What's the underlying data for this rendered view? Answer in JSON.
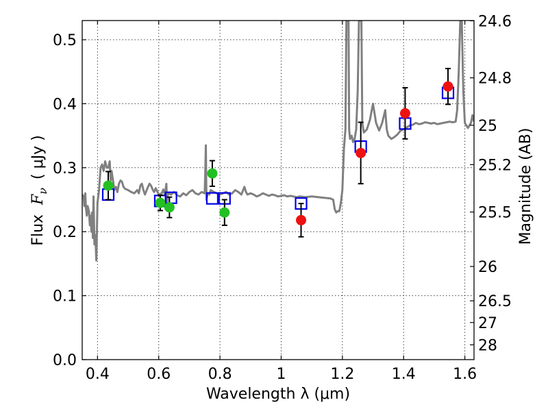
{
  "chart_data": {
    "type": "scatter",
    "title": "",
    "xlabel": "Wavelength  λ (μm)",
    "ylabel": "Flux  F_ν  ( μJy )",
    "ylabel_parts": {
      "prefix": "Flux",
      "symbol": "F",
      "subscript": "ν",
      "unit": "( μJy )"
    },
    "y2label": "Magnitude (AB)",
    "xlim": [
      0.35,
      1.63
    ],
    "ylim": [
      0.0,
      0.53
    ],
    "grid": true,
    "x_ticks": [
      {
        "value": 0.4,
        "label": "0.4"
      },
      {
        "value": 0.6,
        "label": "0.6"
      },
      {
        "value": 0.8,
        "label": "0.8"
      },
      {
        "value": 1.0,
        "label": "1"
      },
      {
        "value": 1.2,
        "label": "1.2"
      },
      {
        "value": 1.4,
        "label": "1.4"
      },
      {
        "value": 1.6,
        "label": "1.6"
      }
    ],
    "y_ticks": [
      {
        "value": 0.0,
        "label": "0.0"
      },
      {
        "value": 0.1,
        "label": "0.1"
      },
      {
        "value": 0.2,
        "label": "0.2"
      },
      {
        "value": 0.3,
        "label": "0.3"
      },
      {
        "value": 0.4,
        "label": "0.4"
      },
      {
        "value": 0.5,
        "label": "0.5"
      }
    ],
    "y2_ticks": [
      {
        "flux": 0.5296,
        "label": "24.6"
      },
      {
        "flux": 0.4405,
        "label": "24.8"
      },
      {
        "flux": 0.3664,
        "label": "25"
      },
      {
        "flux": 0.3048,
        "label": "25.2"
      },
      {
        "flux": 0.2307,
        "label": "25.5"
      },
      {
        "flux": 0.1456,
        "label": "26"
      },
      {
        "flux": 0.0919,
        "label": "26.5"
      },
      {
        "flux": 0.058,
        "label": "27"
      },
      {
        "flux": 0.0231,
        "label": "28"
      }
    ],
    "colors": {
      "sed": "#808080",
      "hst_points": "#22c022",
      "ir_points": "#ee1111",
      "model_boxes": "#0000e6",
      "errorbars": "#000000"
    },
    "series": [
      {
        "name": "model SED",
        "kind": "line",
        "color": "#808080",
        "points": [
          [
            0.35,
            0.258
          ],
          [
            0.355,
            0.255
          ],
          [
            0.357,
            0.24
          ],
          [
            0.36,
            0.26
          ],
          [
            0.362,
            0.238
          ],
          [
            0.365,
            0.225
          ],
          [
            0.368,
            0.24
          ],
          [
            0.372,
            0.232
          ],
          [
            0.375,
            0.21
          ],
          [
            0.378,
            0.225
          ],
          [
            0.38,
            0.2
          ],
          [
            0.382,
            0.23
          ],
          [
            0.385,
            0.19
          ],
          [
            0.387,
            0.255
          ],
          [
            0.39,
            0.18
          ],
          [
            0.393,
            0.195
          ],
          [
            0.396,
            0.155
          ],
          [
            0.4,
            0.245
          ],
          [
            0.405,
            0.265
          ],
          [
            0.41,
            0.3
          ],
          [
            0.415,
            0.305
          ],
          [
            0.42,
            0.295
          ],
          [
            0.425,
            0.31
          ],
          [
            0.43,
            0.3
          ],
          [
            0.435,
            0.3
          ],
          [
            0.44,
            0.31
          ],
          [
            0.443,
            0.28
          ],
          [
            0.446,
            0.295
          ],
          [
            0.45,
            0.282
          ],
          [
            0.455,
            0.265
          ],
          [
            0.46,
            0.27
          ],
          [
            0.465,
            0.262
          ],
          [
            0.47,
            0.275
          ],
          [
            0.475,
            0.28
          ],
          [
            0.48,
            0.278
          ],
          [
            0.485,
            0.27
          ],
          [
            0.49,
            0.267
          ],
          [
            0.5,
            0.265
          ],
          [
            0.51,
            0.262
          ],
          [
            0.52,
            0.26
          ],
          [
            0.53,
            0.265
          ],
          [
            0.535,
            0.26
          ],
          [
            0.54,
            0.272
          ],
          [
            0.545,
            0.275
          ],
          [
            0.55,
            0.265
          ],
          [
            0.555,
            0.258
          ],
          [
            0.56,
            0.264
          ],
          [
            0.565,
            0.27
          ],
          [
            0.57,
            0.275
          ],
          [
            0.575,
            0.272
          ],
          [
            0.58,
            0.266
          ],
          [
            0.585,
            0.262
          ],
          [
            0.59,
            0.268
          ],
          [
            0.6,
            0.258
          ],
          [
            0.61,
            0.26
          ],
          [
            0.615,
            0.266
          ],
          [
            0.62,
            0.258
          ],
          [
            0.625,
            0.275
          ],
          [
            0.627,
            0.24
          ],
          [
            0.63,
            0.26
          ],
          [
            0.64,
            0.258
          ],
          [
            0.65,
            0.262
          ],
          [
            0.66,
            0.257
          ],
          [
            0.67,
            0.255
          ],
          [
            0.68,
            0.26
          ],
          [
            0.69,
            0.257
          ],
          [
            0.7,
            0.262
          ],
          [
            0.71,
            0.265
          ],
          [
            0.72,
            0.26
          ],
          [
            0.73,
            0.258
          ],
          [
            0.74,
            0.262
          ],
          [
            0.75,
            0.26
          ],
          [
            0.752,
            0.29
          ],
          [
            0.754,
            0.335
          ],
          [
            0.756,
            0.25
          ],
          [
            0.76,
            0.26
          ],
          [
            0.765,
            0.258
          ],
          [
            0.77,
            0.265
          ],
          [
            0.78,
            0.262
          ],
          [
            0.79,
            0.26
          ],
          [
            0.8,
            0.258
          ],
          [
            0.81,
            0.26
          ],
          [
            0.82,
            0.262
          ],
          [
            0.83,
            0.258
          ],
          [
            0.84,
            0.26
          ],
          [
            0.85,
            0.265
          ],
          [
            0.86,
            0.262
          ],
          [
            0.87,
            0.258
          ],
          [
            0.88,
            0.27
          ],
          [
            0.885,
            0.262
          ],
          [
            0.89,
            0.258
          ],
          [
            0.9,
            0.26
          ],
          [
            0.91,
            0.258
          ],
          [
            0.92,
            0.255
          ],
          [
            0.93,
            0.257
          ],
          [
            0.94,
            0.26
          ],
          [
            0.95,
            0.258
          ],
          [
            0.96,
            0.256
          ],
          [
            0.97,
            0.258
          ],
          [
            0.98,
            0.257
          ],
          [
            0.99,
            0.255
          ],
          [
            1.0,
            0.256
          ],
          [
            1.01,
            0.257
          ],
          [
            1.02,
            0.255
          ],
          [
            1.03,
            0.256
          ],
          [
            1.04,
            0.255
          ],
          [
            1.05,
            0.254
          ],
          [
            1.06,
            0.255
          ],
          [
            1.08,
            0.254
          ],
          [
            1.1,
            0.255
          ],
          [
            1.12,
            0.254
          ],
          [
            1.14,
            0.253
          ],
          [
            1.16,
            0.252
          ],
          [
            1.17,
            0.25
          ],
          [
            1.175,
            0.235
          ],
          [
            1.18,
            0.23
          ],
          [
            1.185,
            0.232
          ],
          [
            1.19,
            0.232
          ],
          [
            1.195,
            0.245
          ],
          [
            1.2,
            0.265
          ],
          [
            1.205,
            0.33
          ],
          [
            1.21,
            0.36
          ],
          [
            1.213,
            0.53
          ],
          [
            1.22,
            0.53
          ],
          [
            1.222,
            0.36
          ],
          [
            1.225,
            0.345
          ],
          [
            1.23,
            0.35
          ],
          [
            1.235,
            0.34
          ],
          [
            1.24,
            0.345
          ],
          [
            1.245,
            0.36
          ],
          [
            1.25,
            0.42
          ],
          [
            1.254,
            0.53
          ],
          [
            1.262,
            0.53
          ],
          [
            1.265,
            0.37
          ],
          [
            1.27,
            0.355
          ],
          [
            1.28,
            0.36
          ],
          [
            1.29,
            0.375
          ],
          [
            1.3,
            0.4
          ],
          [
            1.31,
            0.37
          ],
          [
            1.32,
            0.358
          ],
          [
            1.33,
            0.37
          ],
          [
            1.34,
            0.39
          ],
          [
            1.345,
            0.36
          ],
          [
            1.35,
            0.35
          ],
          [
            1.36,
            0.345
          ],
          [
            1.37,
            0.348
          ],
          [
            1.38,
            0.352
          ],
          [
            1.39,
            0.358
          ],
          [
            1.4,
            0.36
          ],
          [
            1.41,
            0.363
          ],
          [
            1.42,
            0.366
          ],
          [
            1.43,
            0.367
          ],
          [
            1.44,
            0.37
          ],
          [
            1.45,
            0.368
          ],
          [
            1.46,
            0.369
          ],
          [
            1.47,
            0.371
          ],
          [
            1.48,
            0.37
          ],
          [
            1.49,
            0.369
          ],
          [
            1.5,
            0.37
          ],
          [
            1.51,
            0.368
          ],
          [
            1.52,
            0.369
          ],
          [
            1.53,
            0.37
          ],
          [
            1.54,
            0.371
          ],
          [
            1.55,
            0.372
          ],
          [
            1.56,
            0.371
          ],
          [
            1.57,
            0.372
          ],
          [
            1.575,
            0.39
          ],
          [
            1.58,
            0.45
          ],
          [
            1.585,
            0.53
          ],
          [
            1.59,
            0.53
          ],
          [
            1.595,
            0.42
          ],
          [
            1.6,
            0.37
          ],
          [
            1.61,
            0.362
          ],
          [
            1.62,
            0.37
          ],
          [
            1.625,
            0.382
          ],
          [
            1.63,
            0.372
          ]
        ]
      },
      {
        "name": "observed (green)",
        "kind": "points",
        "color": "#22c022",
        "points": [
          {
            "x": 0.435,
            "y": 0.272,
            "err": 0.022
          },
          {
            "x": 0.605,
            "y": 0.245,
            "err": 0.012
          },
          {
            "x": 0.635,
            "y": 0.238,
            "err": 0.016
          },
          {
            "x": 0.775,
            "y": 0.291,
            "err": 0.02
          },
          {
            "x": 0.815,
            "y": 0.23,
            "err": 0.02
          }
        ]
      },
      {
        "name": "observed (red)",
        "kind": "points",
        "color": "#ee1111",
        "points": [
          {
            "x": 1.065,
            "y": 0.218,
            "err": 0.026
          },
          {
            "x": 1.26,
            "y": 0.323,
            "err": 0.048
          },
          {
            "x": 1.405,
            "y": 0.385,
            "err": 0.04
          },
          {
            "x": 1.545,
            "y": 0.427,
            "err": 0.028
          }
        ]
      },
      {
        "name": "model photometry",
        "kind": "boxes",
        "color": "#0000e6",
        "points": [
          {
            "x": 0.435,
            "y": 0.258
          },
          {
            "x": 0.605,
            "y": 0.248
          },
          {
            "x": 0.64,
            "y": 0.253
          },
          {
            "x": 0.775,
            "y": 0.252
          },
          {
            "x": 0.815,
            "y": 0.252
          },
          {
            "x": 1.065,
            "y": 0.244
          },
          {
            "x": 1.26,
            "y": 0.333
          },
          {
            "x": 1.405,
            "y": 0.369
          },
          {
            "x": 1.545,
            "y": 0.417
          }
        ]
      }
    ]
  }
}
